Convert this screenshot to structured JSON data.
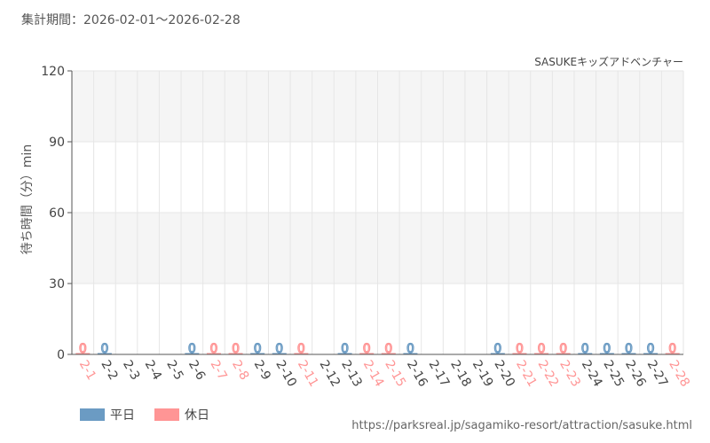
{
  "header": {
    "period_label": "集計期間：2026-02-01～2026-02-28",
    "attraction_name": "SASUKEキッズアドベンチャー"
  },
  "footer": {
    "source_url": "https://parksreal.jp/sagamiko-resort/attraction/sasuke.html"
  },
  "legend": {
    "weekday_label": "平日",
    "holiday_label": "休日"
  },
  "colors": {
    "weekday": "#6b9bc3",
    "holiday": "#ff9595",
    "band": "#f5f5f5",
    "grid": "#e6e6e6",
    "axis": "#555555"
  },
  "chart_data": {
    "type": "bar",
    "ylabel": "待ち時間（分）min",
    "ylim": [
      0,
      120
    ],
    "yticks": [
      0,
      30,
      60,
      90,
      120
    ],
    "grid": true,
    "legend_position": "bottom-left",
    "categories": [
      "2-1",
      "2-2",
      "2-3",
      "2-4",
      "2-5",
      "2-6",
      "2-7",
      "2-8",
      "2-9",
      "2-10",
      "2-11",
      "2-12",
      "2-13",
      "2-14",
      "2-15",
      "2-16",
      "2-17",
      "2-18",
      "2-19",
      "2-20",
      "2-21",
      "2-22",
      "2-23",
      "2-24",
      "2-25",
      "2-26",
      "2-27",
      "2-28"
    ],
    "day_type": [
      "holiday",
      "weekday",
      "weekday",
      "weekday",
      "weekday",
      "weekday",
      "holiday",
      "holiday",
      "weekday",
      "weekday",
      "holiday",
      "weekday",
      "weekday",
      "holiday",
      "holiday",
      "weekday",
      "weekday",
      "weekday",
      "weekday",
      "weekday",
      "holiday",
      "holiday",
      "holiday",
      "weekday",
      "weekday",
      "weekday",
      "weekday",
      "holiday"
    ],
    "values": [
      0,
      0,
      null,
      null,
      null,
      0,
      0,
      0,
      0,
      0,
      0,
      null,
      0,
      0,
      0,
      0,
      null,
      null,
      null,
      0,
      0,
      0,
      0,
      0,
      0,
      0,
      0,
      0
    ],
    "data_labels": [
      "0",
      "0",
      "",
      "",
      "",
      "0",
      "0",
      "0",
      "0",
      "0",
      "0",
      "",
      "0",
      "0",
      "0",
      "0",
      "",
      "",
      "",
      "0",
      "0",
      "0",
      "0",
      "0",
      "0",
      "0",
      "0",
      "0"
    ]
  }
}
